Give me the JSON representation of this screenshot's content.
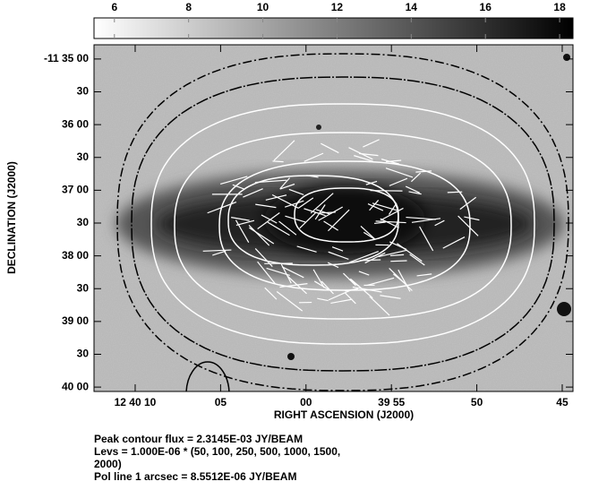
{
  "chart_data": {
    "type": "image",
    "xlabel": "RIGHT ASCENSION (J2000)",
    "ylabel": "DECLINATION (J2000)",
    "xlim": [
      190.051708,
      189.934875
    ],
    "xticks": [
      {
        "value": 190.041667,
        "label": "12 40 10"
      },
      {
        "value": 190.020833,
        "label": "05"
      },
      {
        "value": 190.0,
        "label": "00"
      },
      {
        "value": 189.979167,
        "label": "39 55"
      },
      {
        "value": 189.958333,
        "label": "50"
      },
      {
        "value": 189.9375,
        "label": "45"
      }
    ],
    "ylim": [
      -11.667778,
      -11.579722
    ],
    "yticks": [
      {
        "value": -11.583333,
        "label": "-11 35 00"
      },
      {
        "value": -11.591667,
        "label": "30"
      },
      {
        "value": -11.6,
        "label": "36 00"
      },
      {
        "value": -11.608333,
        "label": "30"
      },
      {
        "value": -11.616667,
        "label": "37 00"
      },
      {
        "value": -11.625,
        "label": "30"
      },
      {
        "value": -11.633333,
        "label": "38 00"
      },
      {
        "value": -11.641667,
        "label": "30"
      },
      {
        "value": -11.65,
        "label": "39 00"
      },
      {
        "value": -11.658333,
        "label": "30"
      },
      {
        "value": -11.666667,
        "label": "40 00"
      }
    ],
    "colorbar": {
      "lim": [
        5.45,
        18.36
      ],
      "ticks": [
        6,
        8,
        10,
        12,
        14,
        16,
        18
      ]
    },
    "notes": [
      "Peak contour flux =  2.3145E-03 JY/BEAM",
      "Levs = 1.000E-06 * (50, 100, 250, 500, 1000, 1500,",
      "2000)",
      "Pol line 1 arcsec =  8.5512E-06 JY/BEAM"
    ]
  }
}
